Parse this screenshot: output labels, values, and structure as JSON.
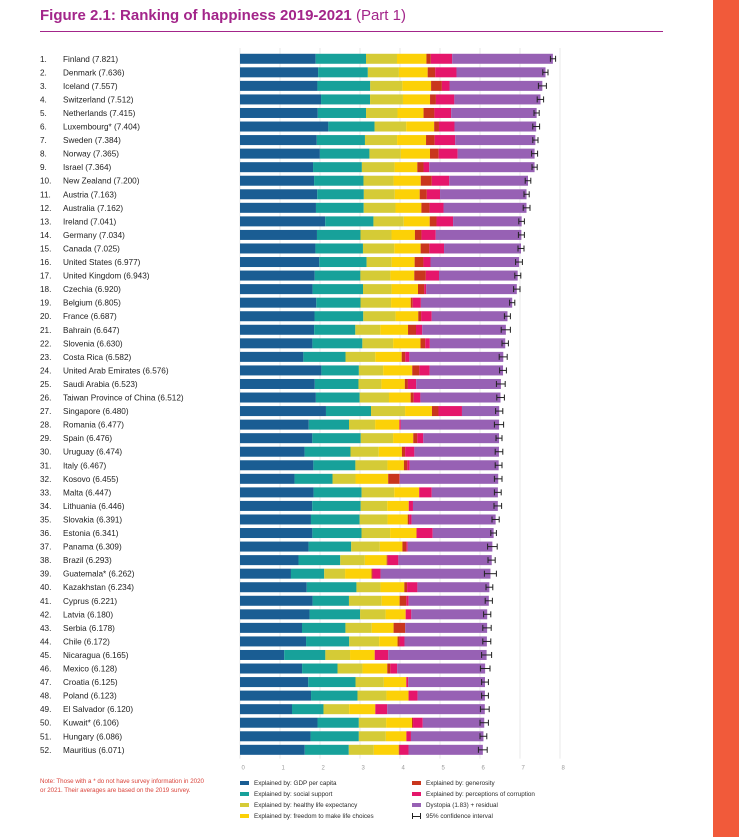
{
  "page": {
    "title_main": "Figure 2.1: Ranking of happiness 2019-2021",
    "title_part": "(Part 1)",
    "accent_color": "#f15a3a",
    "title_color": "#a3258a"
  },
  "note": {
    "label": "Note:",
    "text": "Those with a * do not have survey information in 2020 or 2021. Their averages are based on the 2019 survey.",
    "color": "#d9433a"
  },
  "legend": [
    {
      "key": "gdp",
      "label": "Explained by: GDP per capita"
    },
    {
      "key": "social",
      "label": "Explained by: social support"
    },
    {
      "key": "health",
      "label": "Explained by: healthy life expectancy"
    },
    {
      "key": "freedom",
      "label": "Explained by: freedom to make life choices"
    },
    {
      "key": "generosity",
      "label": "Explained by: generosity"
    },
    {
      "key": "corruption",
      "label": "Explained by: perceptions of corruption"
    },
    {
      "key": "dystopia",
      "label": "Dystopia (1.83) + residual"
    },
    {
      "key": "ci",
      "label": "95% confidence interval"
    }
  ],
  "colors": {
    "gdp": "#1a5d93",
    "social": "#17a19a",
    "health": "#d5cb36",
    "freedom": "#fcd107",
    "generosity": "#c9361d",
    "corruption": "#e5166b",
    "dystopia": "#9761b4",
    "ci": "#222222"
  },
  "chart_data": {
    "type": "bar",
    "stacked": true,
    "orientation": "horizontal",
    "xlim": [
      0,
      8
    ],
    "x_ticks": [
      "0",
      "1",
      "2",
      "3",
      "4",
      "5",
      "6",
      "7",
      "8"
    ],
    "grid": true,
    "components": [
      "gdp",
      "social",
      "health",
      "freedom",
      "generosity",
      "corruption",
      "dystopia"
    ],
    "rows": [
      {
        "label": "1. Finland (7.821)",
        "score": 7.821,
        "parts": [
          1.892,
          1.258,
          0.775,
          0.736,
          0.109,
          0.534,
          2.518
        ],
        "ci": [
          7.76,
          7.89
        ]
      },
      {
        "label": "2. Denmark (7.636)",
        "score": 7.636,
        "parts": [
          1.953,
          1.243,
          0.777,
          0.719,
          0.188,
          0.532,
          2.226
        ],
        "ci": [
          7.57,
          7.7
        ]
      },
      {
        "label": "3. Iceland (7.557)",
        "score": 7.557,
        "parts": [
          1.936,
          1.32,
          0.803,
          0.718,
          0.27,
          0.191,
          2.32
        ],
        "ci": [
          7.46,
          7.66
        ]
      },
      {
        "label": "4. Switzerland (7.512)",
        "score": 7.512,
        "parts": [
          2.026,
          1.226,
          0.822,
          0.677,
          0.147,
          0.461,
          2.153
        ],
        "ci": [
          7.43,
          7.59
        ]
      },
      {
        "label": "5. Netherlands (7.415)",
        "score": 7.415,
        "parts": [
          1.945,
          1.206,
          0.787,
          0.651,
          0.271,
          0.419,
          2.137
        ],
        "ci": [
          7.35,
          7.48
        ]
      },
      {
        "label": "6. Luxembourg* (7.404)",
        "score": 7.404,
        "parts": [
          2.209,
          1.155,
          0.79,
          0.7,
          0.12,
          0.388,
          2.042
        ],
        "ci": [
          7.32,
          7.49
        ]
      },
      {
        "label": "7. Sweden (7.384)",
        "score": 7.384,
        "parts": [
          1.92,
          1.204,
          0.803,
          0.724,
          0.218,
          0.512,
          2.003
        ],
        "ci": [
          7.32,
          7.45
        ]
      },
      {
        "label": "8. Norway (7.365)",
        "score": 7.365,
        "parts": [
          1.997,
          1.239,
          0.786,
          0.728,
          0.217,
          0.474,
          1.924
        ],
        "ci": [
          7.29,
          7.44
        ]
      },
      {
        "label": "9. Israel (7.364)",
        "score": 7.364,
        "parts": [
          1.826,
          1.221,
          0.818,
          0.568,
          0.155,
          0.143,
          2.633
        ],
        "ci": [
          7.3,
          7.43
        ]
      },
      {
        "label": "10. New Zealand (7.200)",
        "score": 7.2,
        "parts": [
          1.852,
          1.235,
          0.752,
          0.68,
          0.276,
          0.437,
          1.968
        ],
        "ci": [
          7.13,
          7.27
        ]
      },
      {
        "label": "11. Austria (7.163)",
        "score": 7.163,
        "parts": [
          1.931,
          1.165,
          0.774,
          0.623,
          0.178,
          0.33,
          2.162
        ],
        "ci": [
          7.1,
          7.23
        ]
      },
      {
        "label": "12. Australia (7.162)",
        "score": 7.162,
        "parts": [
          1.899,
          1.194,
          0.794,
          0.648,
          0.205,
          0.348,
          2.074
        ],
        "ci": [
          7.08,
          7.25
        ]
      },
      {
        "label": "13. Ireland (7.041)",
        "score": 7.041,
        "parts": [
          2.131,
          1.205,
          0.758,
          0.649,
          0.17,
          0.414,
          1.714
        ],
        "ci": [
          6.97,
          7.11
        ]
      },
      {
        "label": "14. Germany (7.034)",
        "score": 7.034,
        "parts": [
          1.924,
          1.088,
          0.776,
          0.585,
          0.163,
          0.358,
          2.14
        ],
        "ci": [
          6.96,
          7.11
        ]
      },
      {
        "label": "15. Canada (7.025)",
        "score": 7.025,
        "parts": [
          1.886,
          1.188,
          0.783,
          0.659,
          0.217,
          0.368,
          1.924
        ],
        "ci": [
          6.95,
          7.1
        ]
      },
      {
        "label": "16. United States (6.977)",
        "score": 6.977,
        "parts": [
          1.982,
          1.182,
          0.628,
          0.574,
          0.22,
          0.177,
          2.214
        ],
        "ci": [
          6.89,
          7.06
        ]
      },
      {
        "label": "17. United Kingdom (6.943)",
        "score": 6.943,
        "parts": [
          1.867,
          1.143,
          0.75,
          0.597,
          0.289,
          0.329,
          1.967
        ],
        "ci": [
          6.87,
          7.02
        ]
      },
      {
        "label": "18. Czechia (6.920)",
        "score": 6.92,
        "parts": [
          1.815,
          1.26,
          0.715,
          0.66,
          0.158,
          0.048,
          2.264
        ],
        "ci": [
          6.84,
          7.0
        ]
      },
      {
        "label": "19. Belgium (6.805)",
        "score": 6.805,
        "parts": [
          1.907,
          1.106,
          0.764,
          0.492,
          0.049,
          0.204,
          2.283
        ],
        "ci": [
          6.74,
          6.87
        ]
      },
      {
        "label": "20. France (6.687)",
        "score": 6.687,
        "parts": [
          1.863,
          1.219,
          0.808,
          0.567,
          0.07,
          0.266,
          1.894
        ],
        "ci": [
          6.61,
          6.76
        ]
      },
      {
        "label": "21. Bahrain (6.647)",
        "score": 6.647,
        "parts": [
          1.854,
          1.029,
          0.625,
          0.693,
          0.199,
          0.155,
          2.092
        ],
        "ci": [
          6.53,
          6.76
        ]
      },
      {
        "label": "22. Slovenia (6.630)",
        "score": 6.63,
        "parts": [
          1.81,
          1.249,
          0.769,
          0.685,
          0.118,
          0.115,
          1.885
        ],
        "ci": [
          6.55,
          6.71
        ]
      },
      {
        "label": "23. Costa Rica (6.582)",
        "score": 6.582,
        "parts": [
          1.584,
          1.054,
          0.744,
          0.661,
          0.089,
          0.102,
          2.348
        ],
        "ci": [
          6.48,
          6.68
        ]
      },
      {
        "label": "24. United Arab Emirates (6.576)",
        "score": 6.576,
        "parts": [
          2.035,
          0.937,
          0.607,
          0.727,
          0.178,
          0.256,
          1.836
        ],
        "ci": [
          6.49,
          6.66
        ]
      },
      {
        "label": "25. Saudi Arabia (6.523)",
        "score": 6.523,
        "parts": [
          1.87,
          1.092,
          0.573,
          0.586,
          0.077,
          0.207,
          2.118
        ],
        "ci": [
          6.41,
          6.63
        ]
      },
      {
        "label": "26. Taiwan Province of China (6.512)",
        "score": 6.512,
        "parts": [
          1.897,
          1.095,
          0.733,
          0.542,
          0.075,
          0.168,
          2.002
        ],
        "ci": [
          6.42,
          6.61
        ]
      },
      {
        "label": "27. Singapore (6.480)",
        "score": 6.48,
        "parts": [
          2.149,
          1.127,
          0.851,
          0.672,
          0.163,
          0.587,
          0.931
        ],
        "ci": [
          6.39,
          6.57
        ]
      },
      {
        "label": "28. Romania (6.477)",
        "score": 6.477,
        "parts": [
          1.719,
          1.006,
          0.653,
          0.607,
          0.0,
          0.036,
          2.456
        ],
        "ci": [
          6.36,
          6.59
        ]
      },
      {
        "label": "29. Spain (6.476)",
        "score": 6.476,
        "parts": [
          1.808,
          1.211,
          0.808,
          0.505,
          0.101,
          0.149,
          1.894
        ],
        "ci": [
          6.4,
          6.55
        ]
      },
      {
        "label": "30. Uruguay (6.474)",
        "score": 6.474,
        "parts": [
          1.615,
          1.147,
          0.707,
          0.579,
          0.08,
          0.231,
          2.115
        ],
        "ci": [
          6.38,
          6.57
        ]
      },
      {
        "label": "31. Italy (6.467)",
        "score": 6.467,
        "parts": [
          1.834,
          1.051,
          0.801,
          0.412,
          0.085,
          0.059,
          2.225
        ],
        "ci": [
          6.38,
          6.55
        ]
      },
      {
        "label": "32. Kosovo (6.455)",
        "score": 6.455,
        "parts": [
          1.364,
          0.949,
          0.575,
          0.817,
          0.281,
          0.008,
          2.461
        ],
        "ci": [
          6.36,
          6.55
        ]
      },
      {
        "label": "33. Malta (6.447)",
        "score": 6.447,
        "parts": [
          1.84,
          1.2,
          0.816,
          0.624,
          0.0,
          0.314,
          1.653
        ],
        "ci": [
          6.36,
          6.53
        ]
      },
      {
        "label": "34. Lithuania (6.446)",
        "score": 6.446,
        "parts": [
          1.805,
          1.213,
          0.663,
          0.538,
          0.0,
          0.105,
          2.122
        ],
        "ci": [
          6.35,
          6.54
        ]
      },
      {
        "label": "35. Slovakia (6.391)",
        "score": 6.391,
        "parts": [
          1.774,
          1.218,
          0.697,
          0.504,
          0.034,
          0.063,
          2.101
        ],
        "ci": [
          6.3,
          6.48
        ]
      },
      {
        "label": "36. Estonia (6.341)",
        "score": 6.341,
        "parts": [
          1.809,
          1.229,
          0.715,
          0.66,
          0.0,
          0.404,
          1.524
        ],
        "ci": [
          6.27,
          6.41
        ]
      },
      {
        "label": "37. Panama (6.309)",
        "score": 6.309,
        "parts": [
          1.715,
          1.065,
          0.716,
          0.565,
          0.098,
          0.034,
          2.116
        ],
        "ci": [
          6.19,
          6.43
        ]
      },
      {
        "label": "38. Brazil (6.293)",
        "score": 6.293,
        "parts": [
          1.462,
          1.044,
          0.615,
          0.546,
          0.026,
          0.266,
          2.334
        ],
        "ci": [
          6.2,
          6.38
        ]
      },
      {
        "label": "39. Guatemala* (6.262)",
        "score": 6.262,
        "parts": [
          1.274,
          0.831,
          0.522,
          0.662,
          0.025,
          0.2,
          2.748
        ],
        "ci": [
          6.11,
          6.41
        ]
      },
      {
        "label": "40. Kazakhstan (6.234)",
        "score": 6.234,
        "parts": [
          1.669,
          1.242,
          0.6,
          0.597,
          0.069,
          0.258,
          1.799
        ],
        "ci": [
          6.15,
          6.32
        ]
      },
      {
        "label": "41. Cyprus (6.221)",
        "score": 6.221,
        "parts": [
          1.815,
          0.909,
          0.819,
          0.448,
          0.167,
          0.059,
          2.004
        ],
        "ci": [
          6.13,
          6.31
        ]
      },
      {
        "label": "42. Latvia (6.180)",
        "score": 6.18,
        "parts": [
          1.739,
          1.264,
          0.637,
          0.502,
          0.0,
          0.141,
          1.897
        ],
        "ci": [
          6.09,
          6.27
        ]
      },
      {
        "label": "43. Serbia (6.178)",
        "score": 6.178,
        "parts": [
          1.55,
          1.086,
          0.658,
          0.546,
          0.291,
          0.0,
          2.047
        ],
        "ci": [
          6.07,
          6.28
        ]
      },
      {
        "label": "44. Chile (6.172)",
        "score": 6.172,
        "parts": [
          1.651,
          1.08,
          0.748,
          0.46,
          0.05,
          0.123,
          2.06
        ],
        "ci": [
          6.07,
          6.27
        ]
      },
      {
        "label": "45. Nicaragua (6.165)",
        "score": 6.165,
        "parts": [
          1.105,
          1.029,
          0.617,
          0.617,
          0.0,
          0.339,
          2.458
        ],
        "ci": [
          6.04,
          6.29
        ]
      },
      {
        "label": "46. Mexico (6.128)",
        "score": 6.128,
        "parts": [
          1.552,
          0.886,
          0.623,
          0.621,
          0.076,
          0.171,
          2.199
        ],
        "ci": [
          6.01,
          6.25
        ]
      },
      {
        "label": "47. Croatia (6.125)",
        "score": 6.125,
        "parts": [
          1.705,
          1.183,
          0.709,
          0.56,
          0.0,
          0.05,
          1.918
        ],
        "ci": [
          6.04,
          6.21
        ]
      },
      {
        "label": "48. Poland (6.123)",
        "score": 6.123,
        "parts": [
          1.776,
          1.161,
          0.724,
          0.553,
          0.0,
          0.226,
          1.683
        ],
        "ci": [
          6.04,
          6.21
        ]
      },
      {
        "label": "49. El Salvador (6.120)",
        "score": 6.12,
        "parts": [
          1.3,
          0.787,
          0.642,
          0.654,
          0.0,
          0.297,
          2.44
        ],
        "ci": [
          6.01,
          6.23
        ]
      },
      {
        "label": "50. Kuwait* (6.106)",
        "score": 6.106,
        "parts": [
          1.938,
          1.033,
          0.682,
          0.647,
          0.026,
          0.243,
          1.537
        ],
        "ci": [
          6.0,
          6.21
        ]
      },
      {
        "label": "51. Hungary (6.086)",
        "score": 6.086,
        "parts": [
          1.764,
          1.207,
          0.675,
          0.514,
          0.0,
          0.114,
          1.812
        ],
        "ci": [
          6.0,
          6.17
        ]
      },
      {
        "label": "52. Mauritius (6.071)",
        "score": 6.071,
        "parts": [
          1.619,
          1.101,
          0.626,
          0.624,
          0.021,
          0.222,
          1.858
        ],
        "ci": [
          5.96,
          6.18
        ]
      }
    ]
  }
}
